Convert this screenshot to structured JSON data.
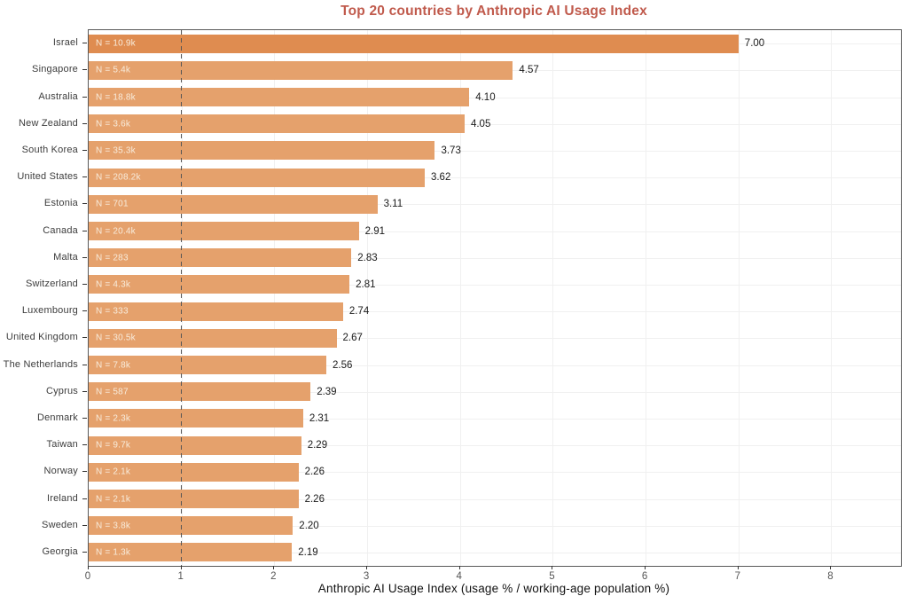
{
  "title": "Top 20 countries by Anthropic AI Usage Index",
  "colors": {
    "title": "#c05a4c",
    "bar": "#e5a16c",
    "bar_highlight": "#df8c50",
    "grid": "#f0f0f0",
    "frame": "#595959",
    "reference_line": "#555555",
    "value_label": "#1a1a1a",
    "country_label": "#3d3d3d",
    "tick_label": "#555555",
    "n_label": "#f8ecdc"
  },
  "chart_data": {
    "type": "bar",
    "orientation": "horizontal",
    "title": "Top 20 countries by Anthropic AI Usage Index",
    "xlabel": "Anthropic AI Usage Index (usage % / working-age population %)",
    "xlim": [
      0,
      8.75
    ],
    "xticks": [
      0,
      1,
      2,
      3,
      4,
      5,
      6,
      7,
      8
    ],
    "reference_line_x": 1,
    "grid": true,
    "legend": false,
    "highlight_first_bar": true,
    "categories": [
      "Israel",
      "Singapore",
      "Australia",
      "New Zealand",
      "South Korea",
      "United States",
      "Estonia",
      "Canada",
      "Malta",
      "Switzerland",
      "Luxembourg",
      "United Kingdom",
      "The Netherlands",
      "Cyprus",
      "Denmark",
      "Taiwan",
      "Norway",
      "Ireland",
      "Sweden",
      "Georgia"
    ],
    "values": [
      7.0,
      4.57,
      4.1,
      4.05,
      3.73,
      3.62,
      3.11,
      2.91,
      2.83,
      2.81,
      2.74,
      2.67,
      2.56,
      2.39,
      2.31,
      2.29,
      2.26,
      2.26,
      2.2,
      2.19
    ],
    "value_labels": [
      "7.00",
      "4.57",
      "4.10",
      "4.05",
      "3.73",
      "3.62",
      "3.11",
      "2.91",
      "2.83",
      "2.81",
      "2.74",
      "2.67",
      "2.56",
      "2.39",
      "2.31",
      "2.29",
      "2.26",
      "2.26",
      "2.20",
      "2.19"
    ],
    "n_labels": [
      "N = 10.9k",
      "N = 5.4k",
      "N = 18.8k",
      "N = 3.6k",
      "N = 35.3k",
      "N = 208.2k",
      "N = 701",
      "N = 20.4k",
      "N = 283",
      "N = 4.3k",
      "N = 333",
      "N = 30.5k",
      "N = 7.8k",
      "N = 587",
      "N = 2.3k",
      "N = 9.7k",
      "N = 2.1k",
      "N = 2.1k",
      "N = 3.8k",
      "N = 1.3k"
    ]
  }
}
